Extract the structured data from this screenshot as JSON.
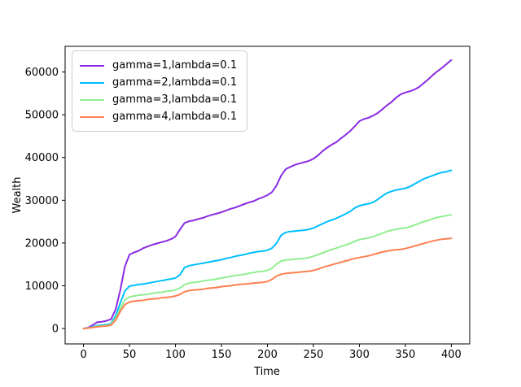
{
  "figure": {
    "background": "#ffffff",
    "spine_color": "#000000",
    "text_color": "#000000"
  },
  "chart_data": {
    "type": "line",
    "title": "",
    "xlabel": "Time",
    "ylabel": "Wealth",
    "xlim": [
      -20,
      420
    ],
    "ylim": [
      -3600,
      66000
    ],
    "x_ticks": [
      0,
      50,
      100,
      150,
      200,
      250,
      300,
      350,
      400
    ],
    "y_ticks": [
      0,
      10000,
      20000,
      30000,
      40000,
      50000,
      60000
    ],
    "grid": false,
    "legend": {
      "position": "upper left",
      "border_color": "#cccccc"
    },
    "x": [
      0,
      5,
      10,
      15,
      20,
      25,
      30,
      35,
      40,
      45,
      50,
      55,
      60,
      65,
      70,
      75,
      80,
      85,
      90,
      95,
      100,
      105,
      110,
      115,
      120,
      125,
      130,
      135,
      140,
      145,
      150,
      155,
      160,
      165,
      170,
      175,
      180,
      185,
      190,
      195,
      200,
      205,
      210,
      215,
      220,
      225,
      230,
      235,
      240,
      245,
      250,
      255,
      260,
      265,
      270,
      275,
      280,
      285,
      290,
      295,
      300,
      305,
      310,
      315,
      320,
      325,
      330,
      335,
      340,
      345,
      350,
      355,
      360,
      365,
      370,
      375,
      380,
      385,
      390,
      395,
      400
    ],
    "series": [
      {
        "name": "gamma=1,lambda=0.1",
        "color": "#8a2be2",
        "values": [
          0,
          200,
          800,
          1500,
          1600,
          1800,
          2200,
          4500,
          9000,
          14500,
          17300,
          17800,
          18200,
          18800,
          19200,
          19600,
          19900,
          20200,
          20500,
          20900,
          21500,
          23200,
          24700,
          25100,
          25300,
          25600,
          25900,
          26300,
          26600,
          26900,
          27200,
          27600,
          28000,
          28300,
          28700,
          29100,
          29500,
          29800,
          30300,
          30700,
          31200,
          31900,
          33500,
          35800,
          37300,
          37800,
          38300,
          38600,
          38900,
          39200,
          39700,
          40500,
          41500,
          42300,
          43000,
          43600,
          44500,
          45300,
          46200,
          47300,
          48500,
          49000,
          49300,
          49800,
          50400,
          51300,
          52200,
          53000,
          54000,
          54800,
          55200,
          55500,
          55900,
          56500,
          57400,
          58300,
          59300,
          60200,
          61000,
          61900,
          62800
        ]
      },
      {
        "name": "gamma=2,lambda=0.1",
        "color": "#00bfff",
        "values": [
          0,
          150,
          400,
          700,
          800,
          900,
          1200,
          3000,
          6000,
          8800,
          9900,
          10100,
          10300,
          10400,
          10600,
          10800,
          11000,
          11200,
          11400,
          11600,
          11800,
          12600,
          14300,
          14700,
          14900,
          15100,
          15300,
          15500,
          15700,
          15900,
          16100,
          16400,
          16600,
          16900,
          17100,
          17300,
          17600,
          17800,
          18000,
          18100,
          18300,
          18800,
          20000,
          21800,
          22500,
          22700,
          22800,
          22900,
          23000,
          23200,
          23500,
          24000,
          24500,
          25000,
          25400,
          25800,
          26300,
          26800,
          27400,
          28200,
          28700,
          29000,
          29200,
          29500,
          30200,
          31000,
          31700,
          32100,
          32400,
          32600,
          32800,
          33200,
          33800,
          34400,
          35000,
          35400,
          35800,
          36200,
          36500,
          36700,
          37000
        ]
      },
      {
        "name": "gamma=3,lambda=0.1",
        "color": "#90ee90",
        "values": [
          0,
          100,
          300,
          500,
          600,
          700,
          1000,
          2400,
          4700,
          6700,
          7400,
          7600,
          7800,
          7900,
          8000,
          8200,
          8400,
          8500,
          8700,
          8800,
          9000,
          9500,
          10300,
          10600,
          10800,
          10900,
          11100,
          11300,
          11400,
          11600,
          11800,
          12000,
          12200,
          12400,
          12500,
          12700,
          12900,
          13100,
          13300,
          13400,
          13600,
          14100,
          15100,
          15800,
          16000,
          16100,
          16200,
          16300,
          16400,
          16600,
          16900,
          17300,
          17700,
          18100,
          18500,
          18800,
          19200,
          19500,
          19900,
          20400,
          20800,
          21000,
          21200,
          21500,
          21900,
          22300,
          22700,
          23000,
          23200,
          23400,
          23500,
          23800,
          24200,
          24600,
          25000,
          25300,
          25700,
          26000,
          26200,
          26400,
          26600
        ]
      },
      {
        "name": "gamma=4,lambda=0.1",
        "color": "#ff7f50",
        "values": [
          0,
          100,
          250,
          400,
          500,
          600,
          800,
          2000,
          4000,
          5600,
          6200,
          6400,
          6500,
          6600,
          6800,
          6900,
          7000,
          7200,
          7300,
          7400,
          7600,
          8000,
          8600,
          8900,
          9000,
          9100,
          9200,
          9400,
          9500,
          9600,
          9800,
          9900,
          10000,
          10200,
          10300,
          10400,
          10500,
          10600,
          10700,
          10800,
          11000,
          11500,
          12300,
          12700,
          12900,
          13000,
          13100,
          13200,
          13300,
          13400,
          13600,
          13900,
          14300,
          14600,
          14900,
          15200,
          15500,
          15800,
          16100,
          16400,
          16600,
          16800,
          17000,
          17300,
          17600,
          17900,
          18100,
          18300,
          18400,
          18500,
          18700,
          19000,
          19300,
          19600,
          19900,
          20200,
          20500,
          20700,
          20900,
          21000,
          21100
        ]
      }
    ]
  }
}
